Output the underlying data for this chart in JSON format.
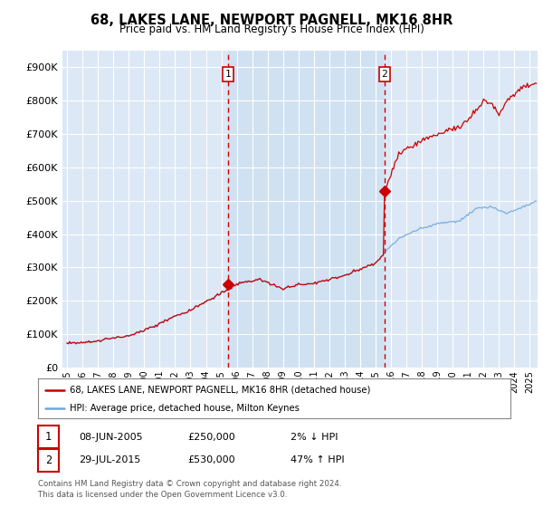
{
  "title": "68, LAKES LANE, NEWPORT PAGNELL, MK16 8HR",
  "subtitle": "Price paid vs. HM Land Registry's House Price Index (HPI)",
  "legend_line1": "68, LAKES LANE, NEWPORT PAGNELL, MK16 8HR (detached house)",
  "legend_line2": "HPI: Average price, detached house, Milton Keynes",
  "footnote": "Contains HM Land Registry data © Crown copyright and database right 2024.\nThis data is licensed under the Open Government Licence v3.0.",
  "transaction1": {
    "label": "1",
    "date": "08-JUN-2005",
    "price": 250000,
    "pct": "2%",
    "direction": "↓",
    "x_year": 2005.44
  },
  "transaction2": {
    "label": "2",
    "date": "29-JUL-2015",
    "price": 530000,
    "pct": "47%",
    "direction": "↑",
    "x_year": 2015.58
  },
  "hpi_color": "#6fa8dc",
  "price_color": "#cc0000",
  "bg_color": "#dce8f5",
  "plot_bg": "#ffffff",
  "highlight_color": "#dce8f5",
  "ylim": [
    0,
    950000
  ],
  "xlim_start": 1994.7,
  "xlim_end": 2025.5,
  "yticks": [
    0,
    100000,
    200000,
    300000,
    400000,
    500000,
    600000,
    700000,
    800000,
    900000
  ],
  "ytick_labels": [
    "£0",
    "£100K",
    "£200K",
    "£300K",
    "£400K",
    "£500K",
    "£600K",
    "£700K",
    "£800K",
    "£900K"
  ]
}
